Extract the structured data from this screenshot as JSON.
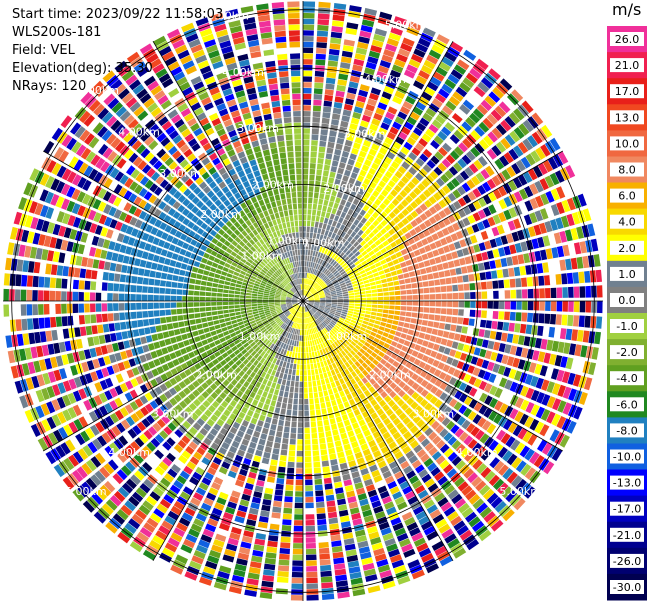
{
  "header": {
    "start_time": "Start time: 2023/09/22 11:58:03",
    "instrument": "WLS200s-181",
    "field": "Field: VEL",
    "elevation": "Elevation(deg): 35.30",
    "nrays": "NRays: 120"
  },
  "colorbar": {
    "unit": "m/s",
    "segments": [
      {
        "label": "26.0",
        "color": "#f0309a"
      },
      {
        "label": "21.0",
        "color": "#f02050"
      },
      {
        "label": "17.0",
        "color": "#e8201a"
      },
      {
        "label": "13.0",
        "color": "#f04820"
      },
      {
        "label": "10.0",
        "color": "#f06840"
      },
      {
        "label": "8.0",
        "color": "#f08860"
      },
      {
        "label": "6.0",
        "color": "#f8b000"
      },
      {
        "label": "4.0",
        "color": "#f8d800"
      },
      {
        "label": "2.0",
        "color": "#ffff00"
      },
      {
        "label": "1.0",
        "color": "#708090"
      },
      {
        "label": "0.0",
        "color": "#808080"
      },
      {
        "label": "-1.0",
        "color": "#a0d040"
      },
      {
        "label": "-2.0",
        "color": "#80b030"
      },
      {
        "label": "-4.0",
        "color": "#60a020"
      },
      {
        "label": "-6.0",
        "color": "#208820"
      },
      {
        "label": "-8.0",
        "color": "#2080c0"
      },
      {
        "label": "-10.0",
        "color": "#1060e0"
      },
      {
        "label": "-13.0",
        "color": "#0000ff"
      },
      {
        "label": "-17.0",
        "color": "#0000c0"
      },
      {
        "label": "-21.0",
        "color": "#000090"
      },
      {
        "label": "-26.0",
        "color": "#000070"
      },
      {
        "label": "-30.0",
        "color": "#000050"
      }
    ]
  },
  "chart_data": {
    "type": "heatmap",
    "projection": "polar-ppi",
    "rays": 120,
    "range_rings_km": [
      1.0,
      2.0,
      3.0,
      4.0,
      5.0
    ],
    "ring_labels": [
      "1.00km",
      "2.00km",
      "3.00km",
      "4.00km",
      "5.00km"
    ],
    "spokes": 6,
    "colorbar_unit": "m/s"
  }
}
